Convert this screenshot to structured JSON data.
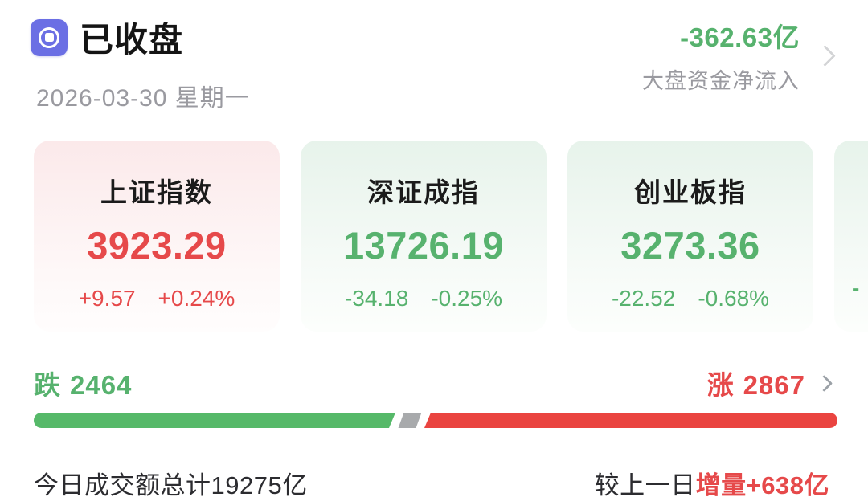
{
  "header": {
    "status_label": "已收盘",
    "date": "2026-03-30 星期一",
    "net_inflow": {
      "value": "-362.63亿",
      "label": "大盘资金净流入"
    }
  },
  "indices": [
    {
      "name": "上证指数",
      "value": "3923.29",
      "change": "+9.57",
      "change_pct": "+0.24%",
      "trend": "up"
    },
    {
      "name": "深证成指",
      "value": "13726.19",
      "change": "-34.18",
      "change_pct": "-0.25%",
      "trend": "down"
    },
    {
      "name": "创业板指",
      "value": "3273.36",
      "change": "-22.52",
      "change_pct": "-0.68%",
      "trend": "down"
    },
    {
      "name": "",
      "value": "",
      "change": "-",
      "change_pct": "",
      "trend": "down",
      "partial": true
    }
  ],
  "breadth": {
    "decliners_label": "跌",
    "decliners_count": "2464",
    "advancers_label": "涨",
    "advancers_count": "2867",
    "bar": {
      "decliners_pct": 45,
      "neutral_pct": 2.2,
      "advancers_pct": 52.8
    }
  },
  "turnover": {
    "total_text": "今日成交额总计19275亿",
    "compare_prefix": "较上一日",
    "compare_highlight": "增量+638亿"
  },
  "colors": {
    "up": "#e6494a",
    "down": "#57b26e",
    "bar_up": "#ea4440",
    "bar_down": "#56b969",
    "bar_neutral": "#a8aaac",
    "icon_bg": "#6b6fe4"
  }
}
